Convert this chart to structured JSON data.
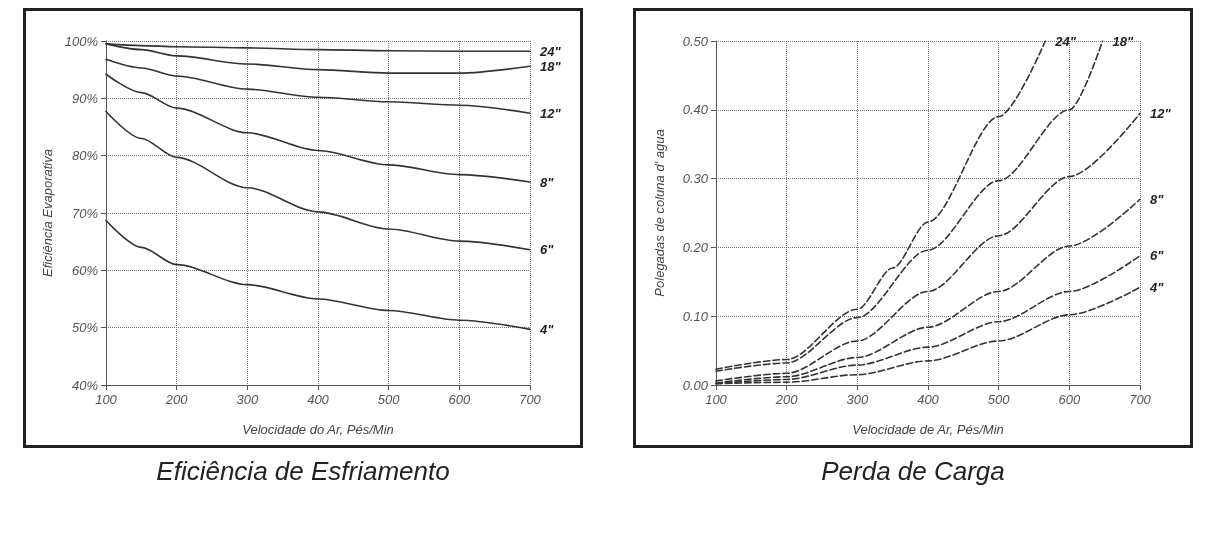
{
  "chart_data": [
    {
      "type": "line",
      "title": "Eficiência de Esfriamento",
      "xlabel": "Velocidade do Ar, Pés/Min",
      "ylabel": "Eficiência Evaporativa",
      "xlim": [
        100,
        700
      ],
      "xticks": [
        100,
        200,
        300,
        400,
        500,
        600,
        700
      ],
      "ylim": [
        40,
        100
      ],
      "yticks": [
        {
          "value": 40,
          "label": "40%"
        },
        {
          "value": 50,
          "label": "50%"
        },
        {
          "value": 60,
          "label": "60%"
        },
        {
          "value": 70,
          "label": "70%"
        },
        {
          "value": 80,
          "label": "80%"
        },
        {
          "value": 90,
          "label": "90%"
        },
        {
          "value": 100,
          "label": "100%"
        }
      ],
      "grid": true,
      "legend": false,
      "marker": "none",
      "line_style": "solid",
      "x": [
        100,
        150,
        200,
        300,
        400,
        500,
        600,
        700
      ],
      "series": [
        {
          "name": "24\"",
          "color": "#333333",
          "values": [
            99.5,
            99.2,
            99,
            98.8,
            98.5,
            98.3,
            98.2,
            98.2
          ]
        },
        {
          "name": "18\"",
          "color": "#333333",
          "values": [
            99.5,
            98.5,
            97.4,
            96,
            95,
            94.4,
            94.4,
            95.6
          ]
        },
        {
          "name": "12\"",
          "color": "#333333",
          "values": [
            96.8,
            95.3,
            93.9,
            91.6,
            90.2,
            89.4,
            88.8,
            87.4
          ]
        },
        {
          "name": "8\"",
          "color": "#333333",
          "values": [
            94.2,
            91,
            88.3,
            84,
            80.9,
            78.4,
            76.7,
            75.4
          ]
        },
        {
          "name": "6\"",
          "color": "#333333",
          "values": [
            87.7,
            83,
            79.7,
            74.4,
            70.2,
            67.2,
            65.1,
            63.6
          ]
        },
        {
          "name": "4\"",
          "color": "#333333",
          "values": [
            68.7,
            64,
            61,
            57.5,
            55,
            53,
            51.3,
            49.7
          ]
        }
      ]
    },
    {
      "type": "line",
      "title": "Perda de Carga",
      "xlabel": "Velocidade de Ar, Pés/Min",
      "ylabel": "Polegadas de coluna d' agua",
      "xlim": [
        100,
        700
      ],
      "xticks": [
        100,
        200,
        300,
        400,
        500,
        600,
        700
      ],
      "ylim": [
        0,
        0.5
      ],
      "yticks": [
        {
          "value": 0,
          "label": "0.00"
        },
        {
          "value": 0.1,
          "label": "0.10"
        },
        {
          "value": 0.2,
          "label": "0.20"
        },
        {
          "value": 0.3,
          "label": "0.30"
        },
        {
          "value": 0.4,
          "label": "0.40"
        },
        {
          "value": 0.5,
          "label": "0.50"
        }
      ],
      "grid": true,
      "legend": false,
      "marker": "none",
      "line_style": "dashed",
      "x": [
        100,
        200,
        300,
        400,
        500,
        600,
        700
      ],
      "series": [
        {
          "name": "24\"",
          "color": "#333333",
          "x": [
            100,
            200,
            300,
            350,
            400,
            500,
            566
          ],
          "values": [
            0.023,
            0.037,
            0.11,
            0.17,
            0.237,
            0.39,
            0.5
          ]
        },
        {
          "name": "18\"",
          "color": "#333333",
          "x": [
            100,
            200,
            300,
            400,
            500,
            600,
            647
          ],
          "values": [
            0.02,
            0.032,
            0.098,
            0.196,
            0.297,
            0.4,
            0.5
          ]
        },
        {
          "name": "12\"",
          "color": "#333333",
          "values": [
            0.006,
            0.017,
            0.064,
            0.136,
            0.217,
            0.303,
            0.395
          ]
        },
        {
          "name": "8\"",
          "color": "#333333",
          "values": [
            0.003,
            0.012,
            0.04,
            0.084,
            0.136,
            0.202,
            0.27
          ]
        },
        {
          "name": "6\"",
          "color": "#333333",
          "values": [
            0.002,
            0.008,
            0.029,
            0.055,
            0.092,
            0.136,
            0.188
          ]
        },
        {
          "name": "4\"",
          "color": "#333333",
          "values": [
            0.002,
            0.004,
            0.015,
            0.035,
            0.064,
            0.102,
            0.142
          ]
        }
      ]
    }
  ]
}
